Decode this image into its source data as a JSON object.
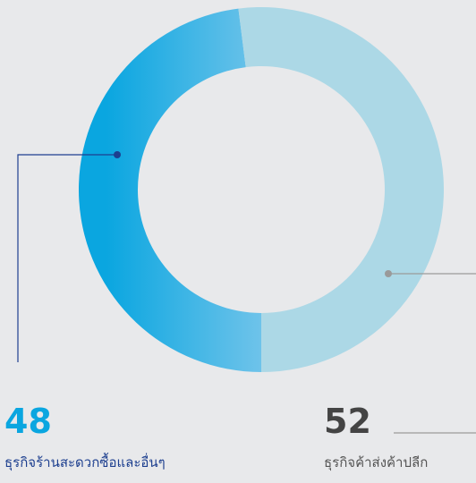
{
  "chart_data": {
    "type": "pie",
    "hole": true,
    "categories": [
      "ธุรกิจร้านสะดวกซื้อและอื่นๆ",
      "ธุรกิจค้าส่งค้าปลีก"
    ],
    "values": [
      48,
      52
    ],
    "colors": [
      "#0aa6e0",
      "#acd8e6"
    ]
  }
}
